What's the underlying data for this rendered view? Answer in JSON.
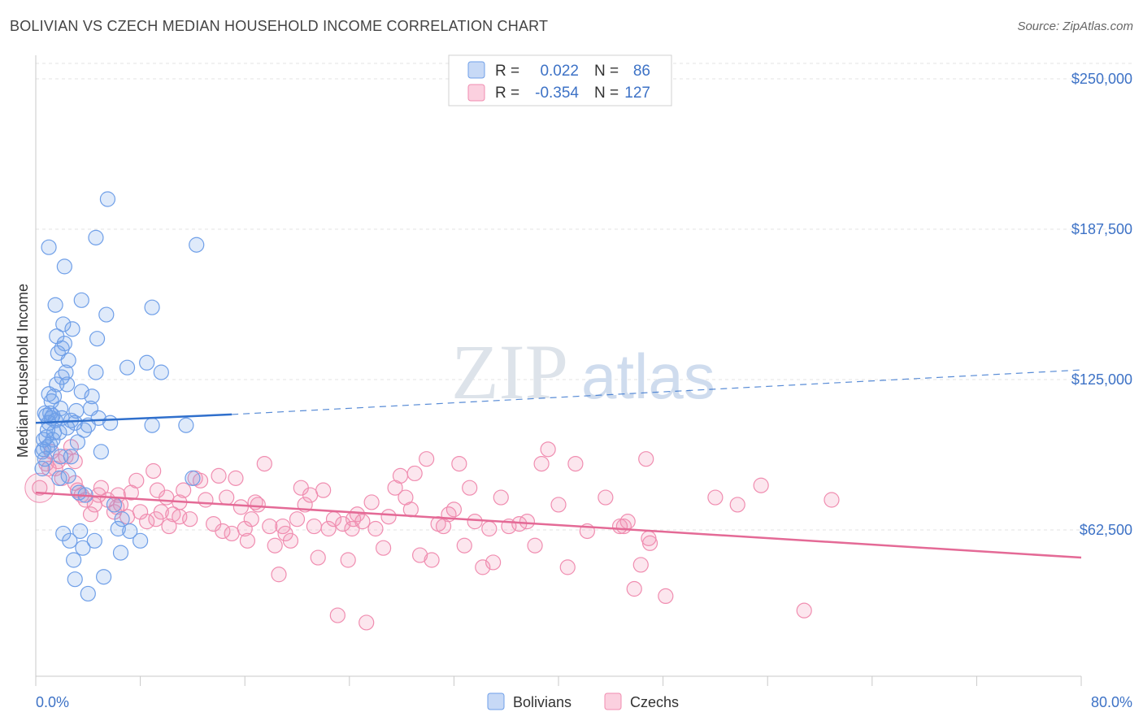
{
  "title": "BOLIVIAN VS CZECH MEDIAN HOUSEHOLD INCOME CORRELATION CHART",
  "source": "Source: ZipAtlas.com",
  "watermark": "ZIPatlas",
  "colors": {
    "bolivians": "#6f9fe8",
    "bolivians_line": "#2f6fcc",
    "czechs": "#f08db0",
    "czechs_line": "#e46a96",
    "tick_text": "#3d72c6"
  },
  "legend": {
    "rows": [
      {
        "r_label": "R =",
        "r_value": "0.022",
        "n_label": "N =",
        "n_value": "86"
      },
      {
        "r_label": "R =",
        "r_value": "-0.354",
        "n_label": "N =",
        "n_value": "127"
      }
    ]
  },
  "chart_data": {
    "type": "scatter",
    "title": "BOLIVIAN VS CZECH MEDIAN HOUSEHOLD INCOME CORRELATION CHART",
    "ylabel": "Median Household Income",
    "xlabel": "",
    "xlim": [
      0,
      80
    ],
    "ylim": [
      10000,
      265000
    ],
    "x_tick_labels": [
      "0.0%",
      "80.0%"
    ],
    "y_ticks": [
      {
        "value": 250000,
        "label": "$250,000"
      },
      {
        "value": 187500,
        "label": "$187,500"
      },
      {
        "value": 125000,
        "label": "$125,000"
      },
      {
        "value": 62500,
        "label": "$62,500"
      }
    ],
    "series": [
      {
        "name": "Bolivians",
        "r": 0.022,
        "n": 86,
        "trend": {
          "x0": 0,
          "y0": 107000,
          "x1": 15,
          "y1": 110500,
          "dashed_to_x": 80,
          "dashed_to_y": 129000
        },
        "points": [
          [
            0.5,
            88
          ],
          [
            0.5,
            95
          ],
          [
            0.6,
            100
          ],
          [
            0.7,
            92
          ],
          [
            0.8,
            110
          ],
          [
            0.8,
            101
          ],
          [
            0.9,
            97
          ],
          [
            1.0,
            107
          ],
          [
            1.0,
            119
          ],
          [
            1.1,
            111
          ],
          [
            1.2,
            109
          ],
          [
            1.2,
            116
          ],
          [
            1.3,
            100
          ],
          [
            1.4,
            118
          ],
          [
            1.5,
            108
          ],
          [
            1.6,
            123
          ],
          [
            1.6,
            143
          ],
          [
            1.7,
            136
          ],
          [
            1.8,
            103
          ],
          [
            1.9,
            113
          ],
          [
            2.0,
            138
          ],
          [
            2.0,
            126
          ],
          [
            2.1,
            148
          ],
          [
            2.2,
            140
          ],
          [
            2.3,
            128
          ],
          [
            2.4,
            105
          ],
          [
            2.5,
            133
          ],
          [
            2.5,
            85
          ],
          [
            2.6,
            58
          ],
          [
            2.7,
            93
          ],
          [
            2.8,
            146
          ],
          [
            2.9,
            50
          ],
          [
            3.0,
            42
          ],
          [
            3.0,
            107
          ],
          [
            3.1,
            112
          ],
          [
            3.2,
            99
          ],
          [
            3.3,
            78
          ],
          [
            3.4,
            62
          ],
          [
            3.5,
            120
          ],
          [
            3.6,
            55
          ],
          [
            3.8,
            77
          ],
          [
            4.0,
            36
          ],
          [
            4.0,
            106
          ],
          [
            4.2,
            113
          ],
          [
            4.3,
            118
          ],
          [
            4.5,
            58
          ],
          [
            4.6,
            128
          ],
          [
            4.7,
            142
          ],
          [
            4.8,
            109
          ],
          [
            5.0,
            95
          ],
          [
            5.2,
            43
          ],
          [
            5.4,
            152
          ],
          [
            5.5,
            200
          ],
          [
            5.7,
            107
          ],
          [
            6.0,
            73
          ],
          [
            6.3,
            63
          ],
          [
            6.5,
            53
          ],
          [
            6.6,
            67
          ],
          [
            7.0,
            130
          ],
          [
            7.2,
            62
          ],
          [
            8.0,
            58
          ],
          [
            8.5,
            132
          ],
          [
            8.9,
            155
          ],
          [
            8.9,
            106
          ],
          [
            9.6,
            128
          ],
          [
            11.5,
            106
          ],
          [
            12.0,
            84
          ],
          [
            12.3,
            181
          ],
          [
            1.0,
            180
          ],
          [
            1.5,
            156
          ],
          [
            2.2,
            172
          ],
          [
            3.5,
            158
          ],
          [
            4.6,
            184
          ],
          [
            0.7,
            111
          ],
          [
            1.3,
            110
          ],
          [
            2.0,
            109
          ],
          [
            2.7,
            108
          ],
          [
            3.7,
            104
          ],
          [
            1.8,
            84
          ],
          [
            2.4,
            123
          ],
          [
            0.9,
            104
          ],
          [
            1.4,
            103
          ],
          [
            1.1,
            98
          ],
          [
            2.1,
            61
          ],
          [
            0.6,
            96
          ],
          [
            1.9,
            93
          ]
        ]
      },
      {
        "name": "Czechs",
        "r": -0.354,
        "n": 127,
        "trend": {
          "x0": 0,
          "y0": 78000,
          "x1": 80,
          "y1": 51000
        },
        "points": [
          [
            0.3,
            80
          ],
          [
            0.8,
            90
          ],
          [
            1.2,
            95
          ],
          [
            1.5,
            88
          ],
          [
            1.7,
            91
          ],
          [
            2.0,
            84
          ],
          [
            2.3,
            93
          ],
          [
            2.7,
            97
          ],
          [
            3.0,
            82
          ],
          [
            3.2,
            79
          ],
          [
            3.5,
            77
          ],
          [
            3.8,
            75
          ],
          [
            4.2,
            69
          ],
          [
            4.5,
            73
          ],
          [
            4.8,
            77
          ],
          [
            5.0,
            80
          ],
          [
            5.5,
            75
          ],
          [
            6.0,
            70
          ],
          [
            6.3,
            77
          ],
          [
            6.5,
            73
          ],
          [
            7.0,
            68
          ],
          [
            7.3,
            78
          ],
          [
            7.7,
            83
          ],
          [
            8.0,
            70
          ],
          [
            8.5,
            66
          ],
          [
            9.0,
            87
          ],
          [
            9.3,
            79
          ],
          [
            9.6,
            70
          ],
          [
            10.0,
            76
          ],
          [
            10.2,
            64
          ],
          [
            10.5,
            69
          ],
          [
            11.0,
            74
          ],
          [
            11.3,
            79
          ],
          [
            11.8,
            67
          ],
          [
            12.2,
            84
          ],
          [
            12.6,
            83
          ],
          [
            13.0,
            75
          ],
          [
            13.6,
            65
          ],
          [
            14.0,
            85
          ],
          [
            14.3,
            62
          ],
          [
            14.6,
            76
          ],
          [
            15.0,
            61
          ],
          [
            15.3,
            84
          ],
          [
            15.7,
            72
          ],
          [
            16.0,
            63
          ],
          [
            16.2,
            58
          ],
          [
            16.5,
            67
          ],
          [
            17.0,
            73
          ],
          [
            17.5,
            90
          ],
          [
            17.9,
            64
          ],
          [
            18.3,
            56
          ],
          [
            18.6,
            44
          ],
          [
            18.9,
            64
          ],
          [
            19.1,
            61
          ],
          [
            19.5,
            58
          ],
          [
            20.0,
            67
          ],
          [
            20.3,
            80
          ],
          [
            20.6,
            73
          ],
          [
            21.0,
            77
          ],
          [
            21.3,
            64
          ],
          [
            21.6,
            51
          ],
          [
            22.0,
            79
          ],
          [
            22.4,
            63
          ],
          [
            22.8,
            67
          ],
          [
            23.1,
            27
          ],
          [
            23.5,
            65
          ],
          [
            23.9,
            50
          ],
          [
            24.2,
            63
          ],
          [
            24.6,
            69
          ],
          [
            25.0,
            66
          ],
          [
            25.3,
            24
          ],
          [
            25.7,
            74
          ],
          [
            26.0,
            63
          ],
          [
            26.6,
            55
          ],
          [
            27.0,
            68
          ],
          [
            27.5,
            80
          ],
          [
            27.9,
            85
          ],
          [
            28.3,
            76
          ],
          [
            28.7,
            71
          ],
          [
            29.0,
            86
          ],
          [
            29.4,
            52
          ],
          [
            29.9,
            92
          ],
          [
            30.3,
            50
          ],
          [
            30.8,
            65
          ],
          [
            31.2,
            64
          ],
          [
            31.6,
            69
          ],
          [
            32.0,
            71
          ],
          [
            32.4,
            90
          ],
          [
            32.8,
            56
          ],
          [
            33.2,
            80
          ],
          [
            33.6,
            66
          ],
          [
            34.2,
            47
          ],
          [
            34.7,
            63
          ],
          [
            35.0,
            49
          ],
          [
            35.6,
            76
          ],
          [
            36.2,
            64
          ],
          [
            37.0,
            65
          ],
          [
            37.6,
            66
          ],
          [
            38.2,
            56
          ],
          [
            38.7,
            90
          ],
          [
            39.2,
            96
          ],
          [
            40.0,
            73
          ],
          [
            40.7,
            47
          ],
          [
            41.3,
            90
          ],
          [
            42.2,
            62
          ],
          [
            43.6,
            76
          ],
          [
            45.0,
            64
          ],
          [
            45.8,
            38
          ],
          [
            46.3,
            48
          ],
          [
            46.7,
            92
          ],
          [
            47.0,
            57
          ],
          [
            48.2,
            35
          ],
          [
            52.0,
            76
          ],
          [
            53.7,
            73
          ],
          [
            55.5,
            81
          ],
          [
            58.8,
            29
          ],
          [
            60.9,
            75
          ],
          [
            44.7,
            64
          ],
          [
            45.3,
            66
          ],
          [
            46.9,
            59
          ],
          [
            3.0,
            91
          ],
          [
            6.2,
            72
          ],
          [
            9.2,
            67
          ],
          [
            11.0,
            68
          ],
          [
            16.8,
            74
          ],
          [
            24.3,
            67
          ],
          [
            1.0,
            88
          ]
        ]
      }
    ]
  },
  "bottom_legend": [
    {
      "label": "Bolivians"
    },
    {
      "label": "Czechs"
    }
  ]
}
